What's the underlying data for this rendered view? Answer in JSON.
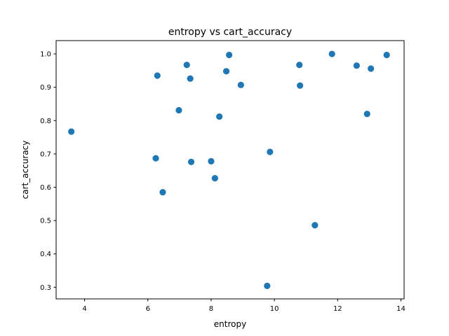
{
  "chart_data": {
    "type": "scatter",
    "title": "entropy vs cart_accuracy",
    "xlabel": "entropy",
    "ylabel": "cart_accuracy",
    "xlim": [
      3.1,
      14.1
    ],
    "ylim": [
      0.265,
      1.04
    ],
    "xticks": [
      4,
      6,
      8,
      10,
      12,
      14
    ],
    "yticks": [
      0.3,
      0.4,
      0.5,
      0.6,
      0.7,
      0.8,
      0.9,
      1.0
    ],
    "xtick_labels": [
      "4",
      "6",
      "8",
      "10",
      "12",
      "14"
    ],
    "ytick_labels": [
      "0.3",
      "0.4",
      "0.5",
      "0.6",
      "0.7",
      "0.8",
      "0.9",
      "1.0"
    ],
    "grid": false,
    "marker_color": "#1f77b4",
    "points": [
      {
        "x": 3.58,
        "y": 0.767
      },
      {
        "x": 6.25,
        "y": 0.687
      },
      {
        "x": 6.3,
        "y": 0.935
      },
      {
        "x": 6.47,
        "y": 0.585
      },
      {
        "x": 6.98,
        "y": 0.831
      },
      {
        "x": 7.23,
        "y": 0.967
      },
      {
        "x": 7.34,
        "y": 0.926
      },
      {
        "x": 7.37,
        "y": 0.676
      },
      {
        "x": 8.0,
        "y": 0.678
      },
      {
        "x": 8.12,
        "y": 0.627
      },
      {
        "x": 8.26,
        "y": 0.812
      },
      {
        "x": 8.48,
        "y": 0.948
      },
      {
        "x": 8.57,
        "y": 0.997
      },
      {
        "x": 8.94,
        "y": 0.907
      },
      {
        "x": 9.77,
        "y": 0.304
      },
      {
        "x": 9.86,
        "y": 0.706
      },
      {
        "x": 10.79,
        "y": 0.967
      },
      {
        "x": 10.81,
        "y": 0.905
      },
      {
        "x": 11.28,
        "y": 0.486
      },
      {
        "x": 11.82,
        "y": 1.0
      },
      {
        "x": 12.6,
        "y": 0.965
      },
      {
        "x": 12.93,
        "y": 0.82
      },
      {
        "x": 13.05,
        "y": 0.956
      },
      {
        "x": 13.55,
        "y": 0.997
      }
    ]
  }
}
